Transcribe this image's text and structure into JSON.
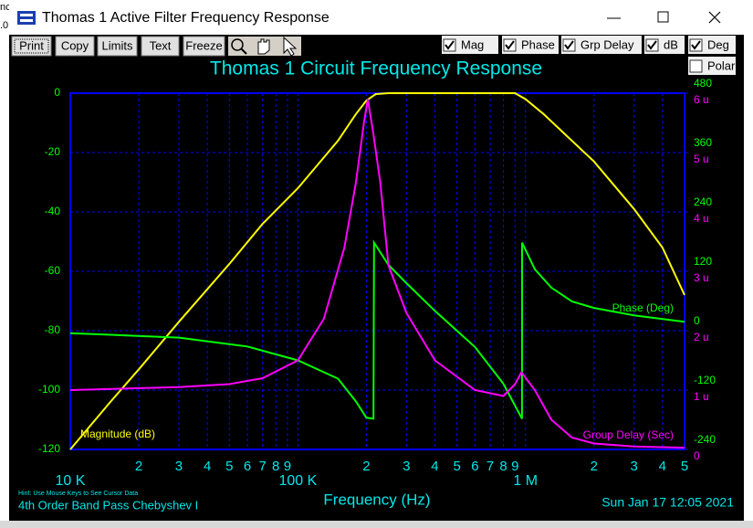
{
  "background_text": [
    "nc",
    ".0"
  ],
  "window": {
    "title": "Thomas 1 Active Filter Frequency Response"
  },
  "toolbar": {
    "buttons": [
      "Print",
      "Copy",
      "Limits",
      "Text",
      "Freeze"
    ],
    "checkboxes": [
      {
        "label": "Mag",
        "checked": true
      },
      {
        "label": "Phase",
        "checked": true
      },
      {
        "label": "Grp Delay",
        "checked": true
      },
      {
        "label": "dB",
        "checked": true
      },
      {
        "label": "Deg",
        "checked": true
      },
      {
        "label": "Polar",
        "checked": false
      }
    ]
  },
  "chart_data": {
    "type": "line",
    "title": "Thomas 1 Circuit Frequency Response",
    "xlabel": "Frequency (Hz)",
    "hint": "Hint: Use Mouse Keys to See Cursor Data",
    "subtitle": "4th Order Band Pass Chebyshev I",
    "date": "Sun Jan 17 12:05 2021",
    "xscale": "log",
    "grid": true,
    "xlim": [
      10000,
      5000000
    ],
    "xticks": [
      {
        "value": 10000,
        "label": "10 K"
      },
      {
        "value": 20000,
        "label": "2"
      },
      {
        "value": 30000,
        "label": "3"
      },
      {
        "value": 40000,
        "label": "4"
      },
      {
        "value": 50000,
        "label": "5"
      },
      {
        "value": 60000,
        "label": "6"
      },
      {
        "value": 70000,
        "label": "7"
      },
      {
        "value": 80000,
        "label": "8"
      },
      {
        "value": 90000,
        "label": "9"
      },
      {
        "value": 100000,
        "label": "100 K"
      },
      {
        "value": 200000,
        "label": "2"
      },
      {
        "value": 300000,
        "label": "3"
      },
      {
        "value": 400000,
        "label": "4"
      },
      {
        "value": 500000,
        "label": "5"
      },
      {
        "value": 600000,
        "label": "6"
      },
      {
        "value": 700000,
        "label": "7"
      },
      {
        "value": 800000,
        "label": "8"
      },
      {
        "value": 900000,
        "label": "9"
      },
      {
        "value": 1000000,
        "label": "1 M"
      },
      {
        "value": 2000000,
        "label": "2"
      },
      {
        "value": 3000000,
        "label": "3"
      },
      {
        "value": 4000000,
        "label": "4"
      },
      {
        "value": 5000000,
        "label": "5"
      }
    ],
    "ylim": [
      -120,
      0
    ],
    "yticks": [
      0,
      -20,
      -40,
      -60,
      -80,
      -100,
      -120
    ],
    "y2lim": [
      -240,
      480
    ],
    "y2ticks": [
      480,
      360,
      240,
      120,
      0,
      -120,
      -240
    ],
    "y3lim": [
      0,
      6e-06
    ],
    "y3ticks": [
      {
        "value": 6e-06,
        "label": "6 u"
      },
      {
        "value": 5e-06,
        "label": "5 u"
      },
      {
        "value": 4e-06,
        "label": "4 u"
      },
      {
        "value": 3e-06,
        "label": "3 u"
      },
      {
        "value": 2e-06,
        "label": "2 u"
      },
      {
        "value": 1e-06,
        "label": "1 u"
      },
      0
    ],
    "series": [
      {
        "name": "Magnitude (dB)",
        "color": "#ffff00",
        "axis": "y",
        "x": [
          10000,
          15000,
          20000,
          30000,
          50000,
          70000,
          100000,
          150000,
          180000,
          200000,
          220000,
          250000,
          900000,
          1000000,
          1200000,
          1500000,
          2000000,
          3000000,
          4000000,
          5000000
        ],
        "values": [
          -120,
          -104,
          -93,
          -77,
          -57.5,
          -44,
          -32,
          -16,
          -7,
          -2.5,
          -0.3,
          0,
          0,
          -2,
          -7,
          -14,
          -23,
          -39,
          -52,
          -68
        ]
      },
      {
        "name": "Phase (Deg)",
        "color": "#00ff00",
        "axis": "y2",
        "x": [
          10000,
          30000,
          60000,
          100000,
          150000,
          180000,
          200000,
          215000,
          216000,
          250000,
          300000,
          400000,
          600000,
          800000,
          950000,
          965000,
          966000,
          1100000,
          1300000,
          1600000,
          2000000,
          3000000,
          5000000
        ],
        "values": [
          -5,
          -14,
          -32,
          -60,
          -97,
          -143,
          -176,
          -178,
          178,
          133,
          96,
          40,
          -33,
          -107,
          -172,
          -178,
          178,
          124,
          87,
          59,
          46,
          31,
          18
        ]
      },
      {
        "name": "Group Delay (Sec)",
        "color": "#ff00ff",
        "axis": "y3",
        "x": [
          10000,
          30000,
          50000,
          70000,
          100000,
          130000,
          160000,
          180000,
          195000,
          203000,
          215000,
          230000,
          250000,
          300000,
          400000,
          600000,
          800000,
          900000,
          960000,
          1100000,
          1300000,
          1600000,
          2000000,
          3000000,
          5000000
        ],
        "values": [
          1e-06,
          1.05e-06,
          1.1e-06,
          1.2e-06,
          1.5e-06,
          2.2e-06,
          3.4e-06,
          4.5e-06,
          5.5e-06,
          5.9e-06,
          5.3e-06,
          4.5e-06,
          3.1e-06,
          2.3e-06,
          1.5e-06,
          1e-06,
          9e-07,
          1.1e-06,
          1.3e-06,
          1e-06,
          5e-07,
          2e-07,
          1e-07,
          5e-08,
          3e-08
        ]
      }
    ]
  }
}
